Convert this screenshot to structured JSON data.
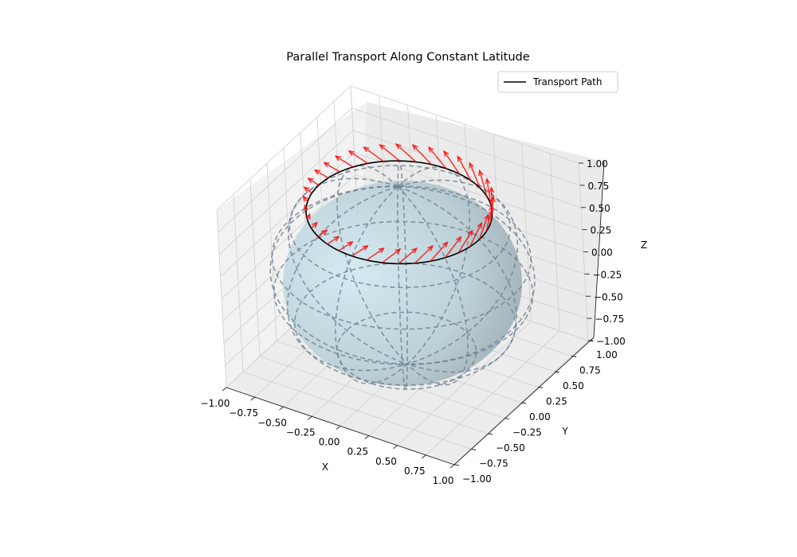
{
  "chart_data": {
    "type": "3d-surface",
    "title": "Parallel Transport Along Constant Latitude",
    "xlabel": "X",
    "ylabel": "Y",
    "zlabel": "Z",
    "xlim": [
      -1.0,
      1.0
    ],
    "ylim": [
      -1.0,
      1.0
    ],
    "zlim": [
      -1.0,
      1.0
    ],
    "x_ticks": [
      "−1.00",
      "−0.75",
      "−0.50",
      "−0.25",
      "0.00",
      "0.25",
      "0.50",
      "0.75",
      "1.00"
    ],
    "y_ticks": [
      "−1.00",
      "−0.75",
      "−0.50",
      "−0.25",
      "0.00",
      "0.25",
      "0.50",
      "0.75",
      "1.00"
    ],
    "z_ticks": [
      "−1.00",
      "−0.75",
      "−0.50",
      "−0.25",
      "0.00",
      "0.25",
      "0.50",
      "0.75",
      "1.00"
    ],
    "grid": true,
    "legend_position": "top-right",
    "legend": [
      {
        "label": "Transport Path",
        "color": "#000000"
      }
    ],
    "surface": {
      "shape": "unit sphere",
      "color": "#add8e6",
      "wireframe_color": "#708090",
      "wireframe_style": "dashed"
    },
    "path": {
      "name": "Transport Path",
      "latitude_z": 0.71,
      "color": "#000000"
    },
    "vectors": {
      "count": 36,
      "color": "#ff0000"
    }
  }
}
